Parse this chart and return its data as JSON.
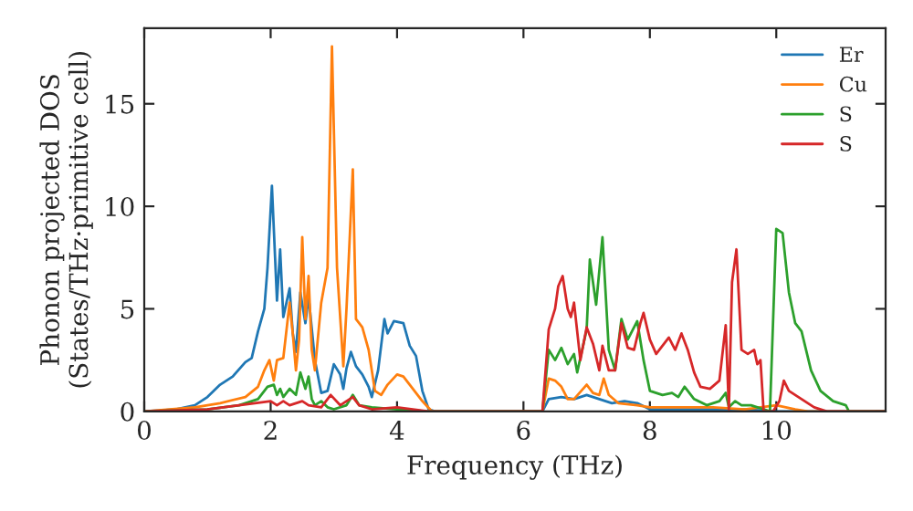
{
  "chart_data": {
    "type": "line",
    "xlabel": "Frequency (THz)",
    "ylabel": "Phonon projected DOS\n(States/THz·primitive cell)",
    "xlim": [
      0,
      11.73
    ],
    "ylim": [
      0,
      18.69
    ],
    "xticks": [
      0,
      2,
      4,
      6,
      8,
      10
    ],
    "yticks": [
      0,
      5,
      10,
      15
    ],
    "grid": false,
    "legend": "top right",
    "marker": "none",
    "line_style": "solid",
    "series": [
      {
        "name": "Er",
        "color": "#1f77b4",
        "x": [
          0,
          0.5,
          0.8,
          1.0,
          1.2,
          1.4,
          1.6,
          1.7,
          1.8,
          1.9,
          1.95,
          2.02,
          2.07,
          2.1,
          2.15,
          2.2,
          2.3,
          2.35,
          2.4,
          2.47,
          2.55,
          2.6,
          2.7,
          2.8,
          2.9,
          3.0,
          3.1,
          3.15,
          3.2,
          3.27,
          3.35,
          3.45,
          3.55,
          3.6,
          3.7,
          3.8,
          3.85,
          3.95,
          4.1,
          4.2,
          4.3,
          4.4,
          4.5,
          4.6,
          6.3,
          6.4,
          6.6,
          6.8,
          7.0,
          7.2,
          7.4,
          7.6,
          7.8,
          8.0,
          9.0,
          9.5,
          10,
          11.73
        ],
        "values": [
          0,
          0.1,
          0.3,
          0.7,
          1.3,
          1.7,
          2.4,
          2.6,
          3.9,
          5.0,
          7.0,
          11.0,
          7.5,
          5.4,
          7.9,
          4.6,
          6.0,
          3.8,
          2.9,
          5.8,
          4.3,
          5.6,
          2.5,
          0.9,
          1.0,
          2.3,
          1.8,
          1.1,
          2.1,
          2.9,
          2.2,
          1.8,
          1.2,
          0.7,
          2.0,
          4.5,
          3.8,
          4.4,
          4.3,
          3.2,
          2.7,
          1.0,
          0.1,
          0,
          0,
          0.6,
          0.7,
          0.6,
          0.8,
          0.6,
          0.4,
          0.5,
          0.4,
          0.1,
          0.1,
          0.1,
          0,
          0
        ]
      },
      {
        "name": "Cu",
        "color": "#ff7f0e",
        "x": [
          0,
          0.8,
          1.2,
          1.6,
          1.8,
          1.9,
          1.98,
          2.05,
          2.1,
          2.2,
          2.3,
          2.35,
          2.4,
          2.45,
          2.5,
          2.55,
          2.6,
          2.65,
          2.7,
          2.8,
          2.9,
          2.97,
          3.05,
          3.15,
          3.2,
          3.3,
          3.35,
          3.45,
          3.55,
          3.65,
          3.75,
          3.85,
          4.0,
          4.1,
          4.2,
          4.4,
          4.55,
          6.3,
          6.4,
          6.5,
          6.6,
          6.7,
          6.8,
          7.0,
          7.1,
          7.2,
          7.27,
          7.35,
          7.5,
          7.8,
          8.0,
          8.5,
          9.0,
          9.5,
          10.0,
          10.3,
          10.5,
          11.73
        ],
        "values": [
          0,
          0.2,
          0.4,
          0.7,
          1.2,
          2.0,
          2.5,
          1.5,
          2.5,
          2.6,
          5.3,
          3.8,
          2.0,
          3.5,
          8.5,
          4.5,
          6.6,
          3.0,
          2.0,
          5.3,
          7.0,
          17.8,
          7.0,
          2.2,
          5.0,
          11.8,
          4.5,
          4.1,
          3.0,
          1.0,
          0.8,
          1.3,
          1.8,
          1.7,
          1.3,
          0.5,
          0,
          0,
          1.6,
          1.5,
          1.2,
          0.6,
          0.6,
          1.3,
          0.9,
          0.8,
          1.6,
          0.8,
          0.4,
          0.3,
          0.2,
          0.2,
          0.2,
          0.1,
          0.3,
          0.1,
          0,
          0
        ]
      },
      {
        "name": "S",
        "color": "#2ca02c",
        "x": [
          0,
          1.0,
          1.5,
          1.8,
          1.95,
          2.05,
          2.1,
          2.15,
          2.2,
          2.3,
          2.4,
          2.47,
          2.55,
          2.6,
          2.65,
          2.7,
          2.8,
          2.9,
          3.0,
          3.2,
          3.3,
          3.4,
          3.6,
          4.0,
          4.5,
          6.3,
          6.4,
          6.5,
          6.6,
          6.7,
          6.8,
          6.85,
          7.0,
          7.05,
          7.15,
          7.25,
          7.35,
          7.45,
          7.55,
          7.65,
          7.8,
          7.9,
          8.0,
          8.2,
          8.35,
          8.45,
          8.55,
          8.7,
          8.9,
          9.1,
          9.2,
          9.25,
          9.35,
          9.45,
          9.6,
          9.8,
          9.9,
          10.0,
          10.1,
          10.2,
          10.3,
          10.4,
          10.55,
          10.7,
          10.9,
          11.1,
          11.15,
          11.73
        ],
        "values": [
          0,
          0.1,
          0.3,
          0.6,
          1.2,
          1.3,
          0.8,
          1.1,
          0.7,
          1.1,
          0.8,
          1.9,
          1.1,
          1.7,
          0.6,
          0.3,
          0.5,
          0.2,
          0.1,
          0.3,
          0.8,
          0.3,
          0.2,
          0.1,
          0,
          0,
          3.0,
          2.5,
          3.1,
          2.3,
          2.8,
          1.9,
          4.0,
          7.4,
          5.2,
          8.5,
          3.0,
          2.0,
          4.5,
          3.5,
          4.4,
          2.5,
          1.0,
          0.8,
          0.9,
          0.7,
          1.2,
          0.6,
          0.3,
          0.5,
          0.9,
          0.2,
          0.5,
          0.3,
          0.3,
          0.1,
          0,
          8.9,
          8.7,
          5.8,
          4.3,
          3.9,
          2.0,
          1.0,
          0.5,
          0.3,
          0,
          0
        ]
      },
      {
        "name": "S",
        "color": "#d62728",
        "x": [
          0,
          1.0,
          1.5,
          2.0,
          2.1,
          2.2,
          2.3,
          2.5,
          2.6,
          2.8,
          2.95,
          3.1,
          3.3,
          3.4,
          3.6,
          4.0,
          4.5,
          6.3,
          6.4,
          6.5,
          6.55,
          6.62,
          6.7,
          6.75,
          6.8,
          6.9,
          7.0,
          7.1,
          7.2,
          7.25,
          7.35,
          7.45,
          7.55,
          7.65,
          7.75,
          7.85,
          7.9,
          8.0,
          8.1,
          8.3,
          8.4,
          8.5,
          8.6,
          8.7,
          8.8,
          8.95,
          9.1,
          9.2,
          9.25,
          9.3,
          9.37,
          9.45,
          9.55,
          9.65,
          9.7,
          9.75,
          9.8,
          9.95,
          10.05,
          10.12,
          10.2,
          10.4,
          10.6,
          10.8,
          11.73
        ],
        "values": [
          0,
          0.1,
          0.3,
          0.5,
          0.3,
          0.5,
          0.3,
          0.5,
          0.3,
          0.2,
          0.8,
          0.3,
          0.7,
          0.3,
          0.1,
          0.2,
          0,
          0,
          4.0,
          5.0,
          6.1,
          6.6,
          5.0,
          4.6,
          5.3,
          2.5,
          4.1,
          3.3,
          2.0,
          3.2,
          2.0,
          2.0,
          4.3,
          3.1,
          3.0,
          4.3,
          4.8,
          3.5,
          2.8,
          3.6,
          3.0,
          3.8,
          3.0,
          1.9,
          1.2,
          1.1,
          1.5,
          4.2,
          0.1,
          6.3,
          7.9,
          3.0,
          2.8,
          3.0,
          2.3,
          2.5,
          0,
          0,
          0.5,
          1.5,
          1.0,
          0.6,
          0.2,
          0,
          0
        ]
      }
    ]
  }
}
